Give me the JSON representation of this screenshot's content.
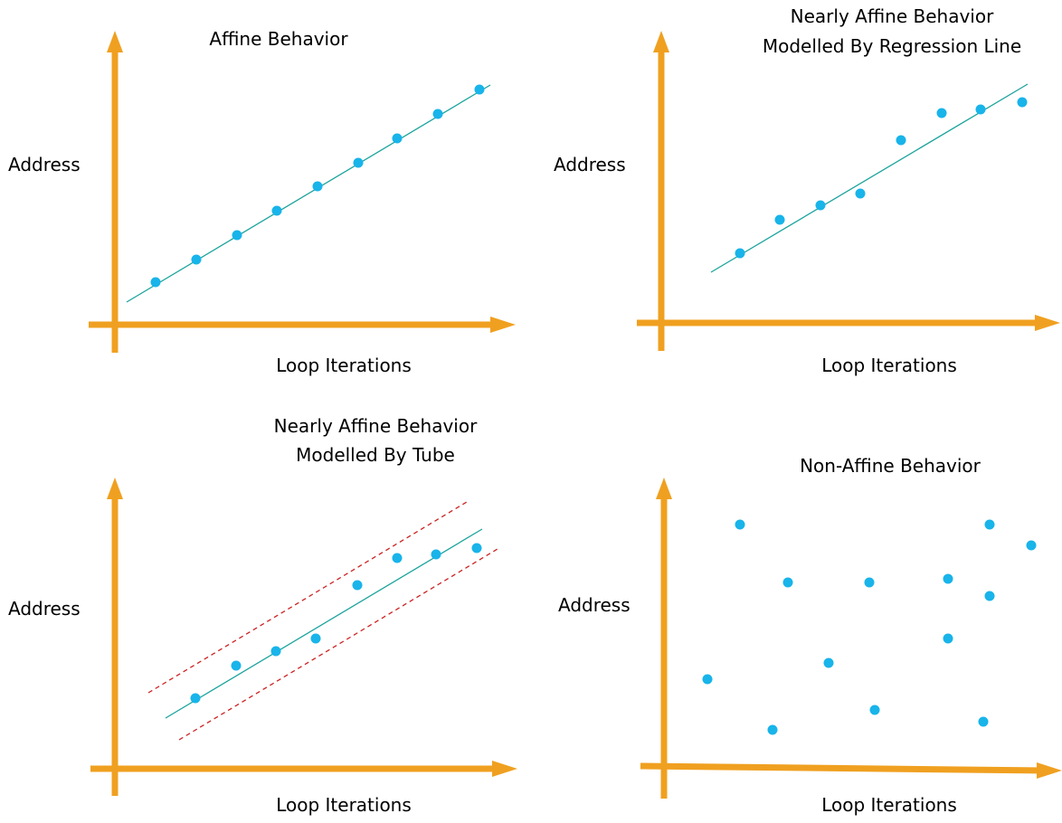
{
  "colors": {
    "axis": "#f0a020",
    "point": "#18b4ea",
    "regression_line": "#1aa39c",
    "tube_bounds": "#cc2222"
  },
  "panels": [
    {
      "id": "affine",
      "title_lines": [
        "Affine Behavior"
      ],
      "ylabel": "Address",
      "xlabel": "Loop Iterations",
      "has_regression_line": true,
      "has_tube": false
    },
    {
      "id": "nearly-affine-regression",
      "title_lines": [
        "Nearly Affine Behavior",
        "Modelled By Regression Line"
      ],
      "ylabel": "Address",
      "xlabel": "Loop Iterations",
      "has_regression_line": true,
      "has_tube": false
    },
    {
      "id": "nearly-affine-tube",
      "title_lines": [
        "Nearly Affine Behavior",
        "Modelled By Tube"
      ],
      "ylabel": "Address",
      "xlabel": "Loop Iterations",
      "has_regression_line": true,
      "has_tube": true
    },
    {
      "id": "non-affine",
      "title_lines": [
        "Non-Affine Behavior"
      ],
      "ylabel": "Address",
      "xlabel": "Loop Iterations",
      "has_regression_line": false,
      "has_tube": false
    }
  ]
}
